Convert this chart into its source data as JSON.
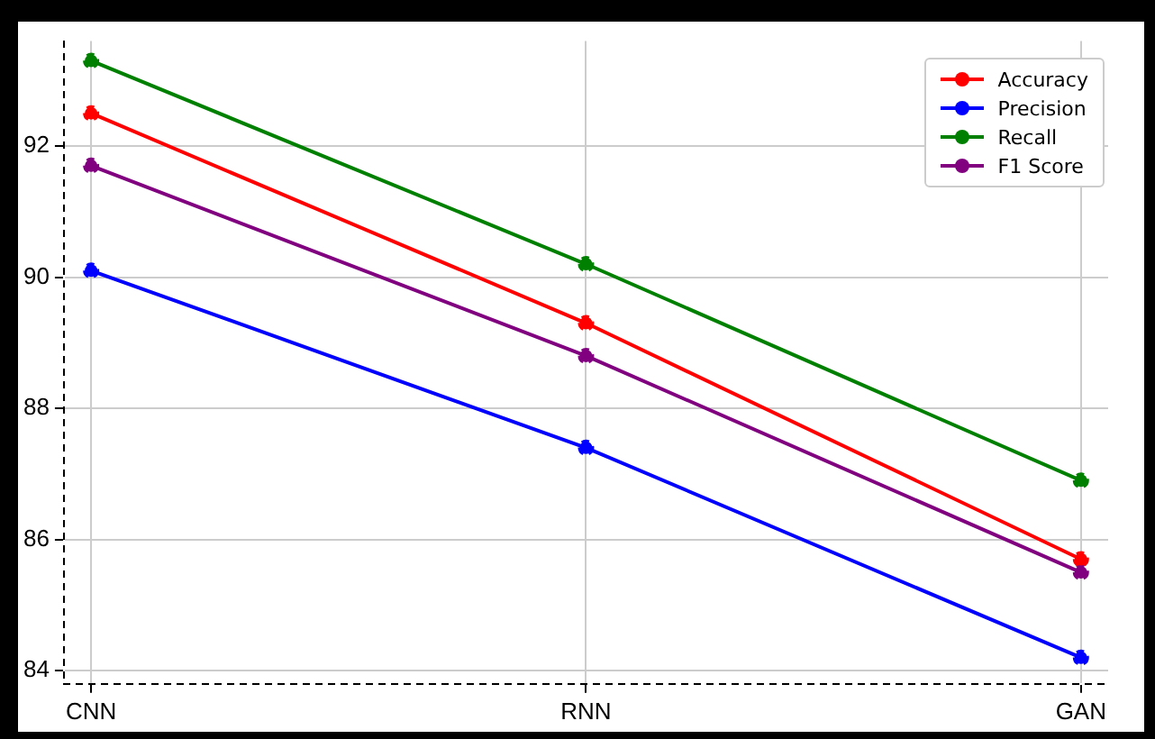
{
  "chart_data": {
    "type": "line",
    "categories": [
      "CNN",
      "RNN",
      "GAN"
    ],
    "series": [
      {
        "name": "Accuracy",
        "color": "#ff0000",
        "values": [
          92.5,
          89.3,
          85.7
        ]
      },
      {
        "name": "Precision",
        "color": "#0000ff",
        "values": [
          90.1,
          87.4,
          84.2
        ]
      },
      {
        "name": "Recall",
        "color": "#008000",
        "values": [
          93.3,
          90.2,
          86.9
        ]
      },
      {
        "name": "F1 Score",
        "color": "#800080",
        "values": [
          91.7,
          88.8,
          85.5
        ]
      }
    ],
    "ylim": [
      83.8,
      93.6
    ],
    "yticks": [
      84,
      86,
      88,
      90,
      92
    ],
    "grid": true,
    "legend": "top right",
    "marker": "circle",
    "line_style": "solid"
  }
}
